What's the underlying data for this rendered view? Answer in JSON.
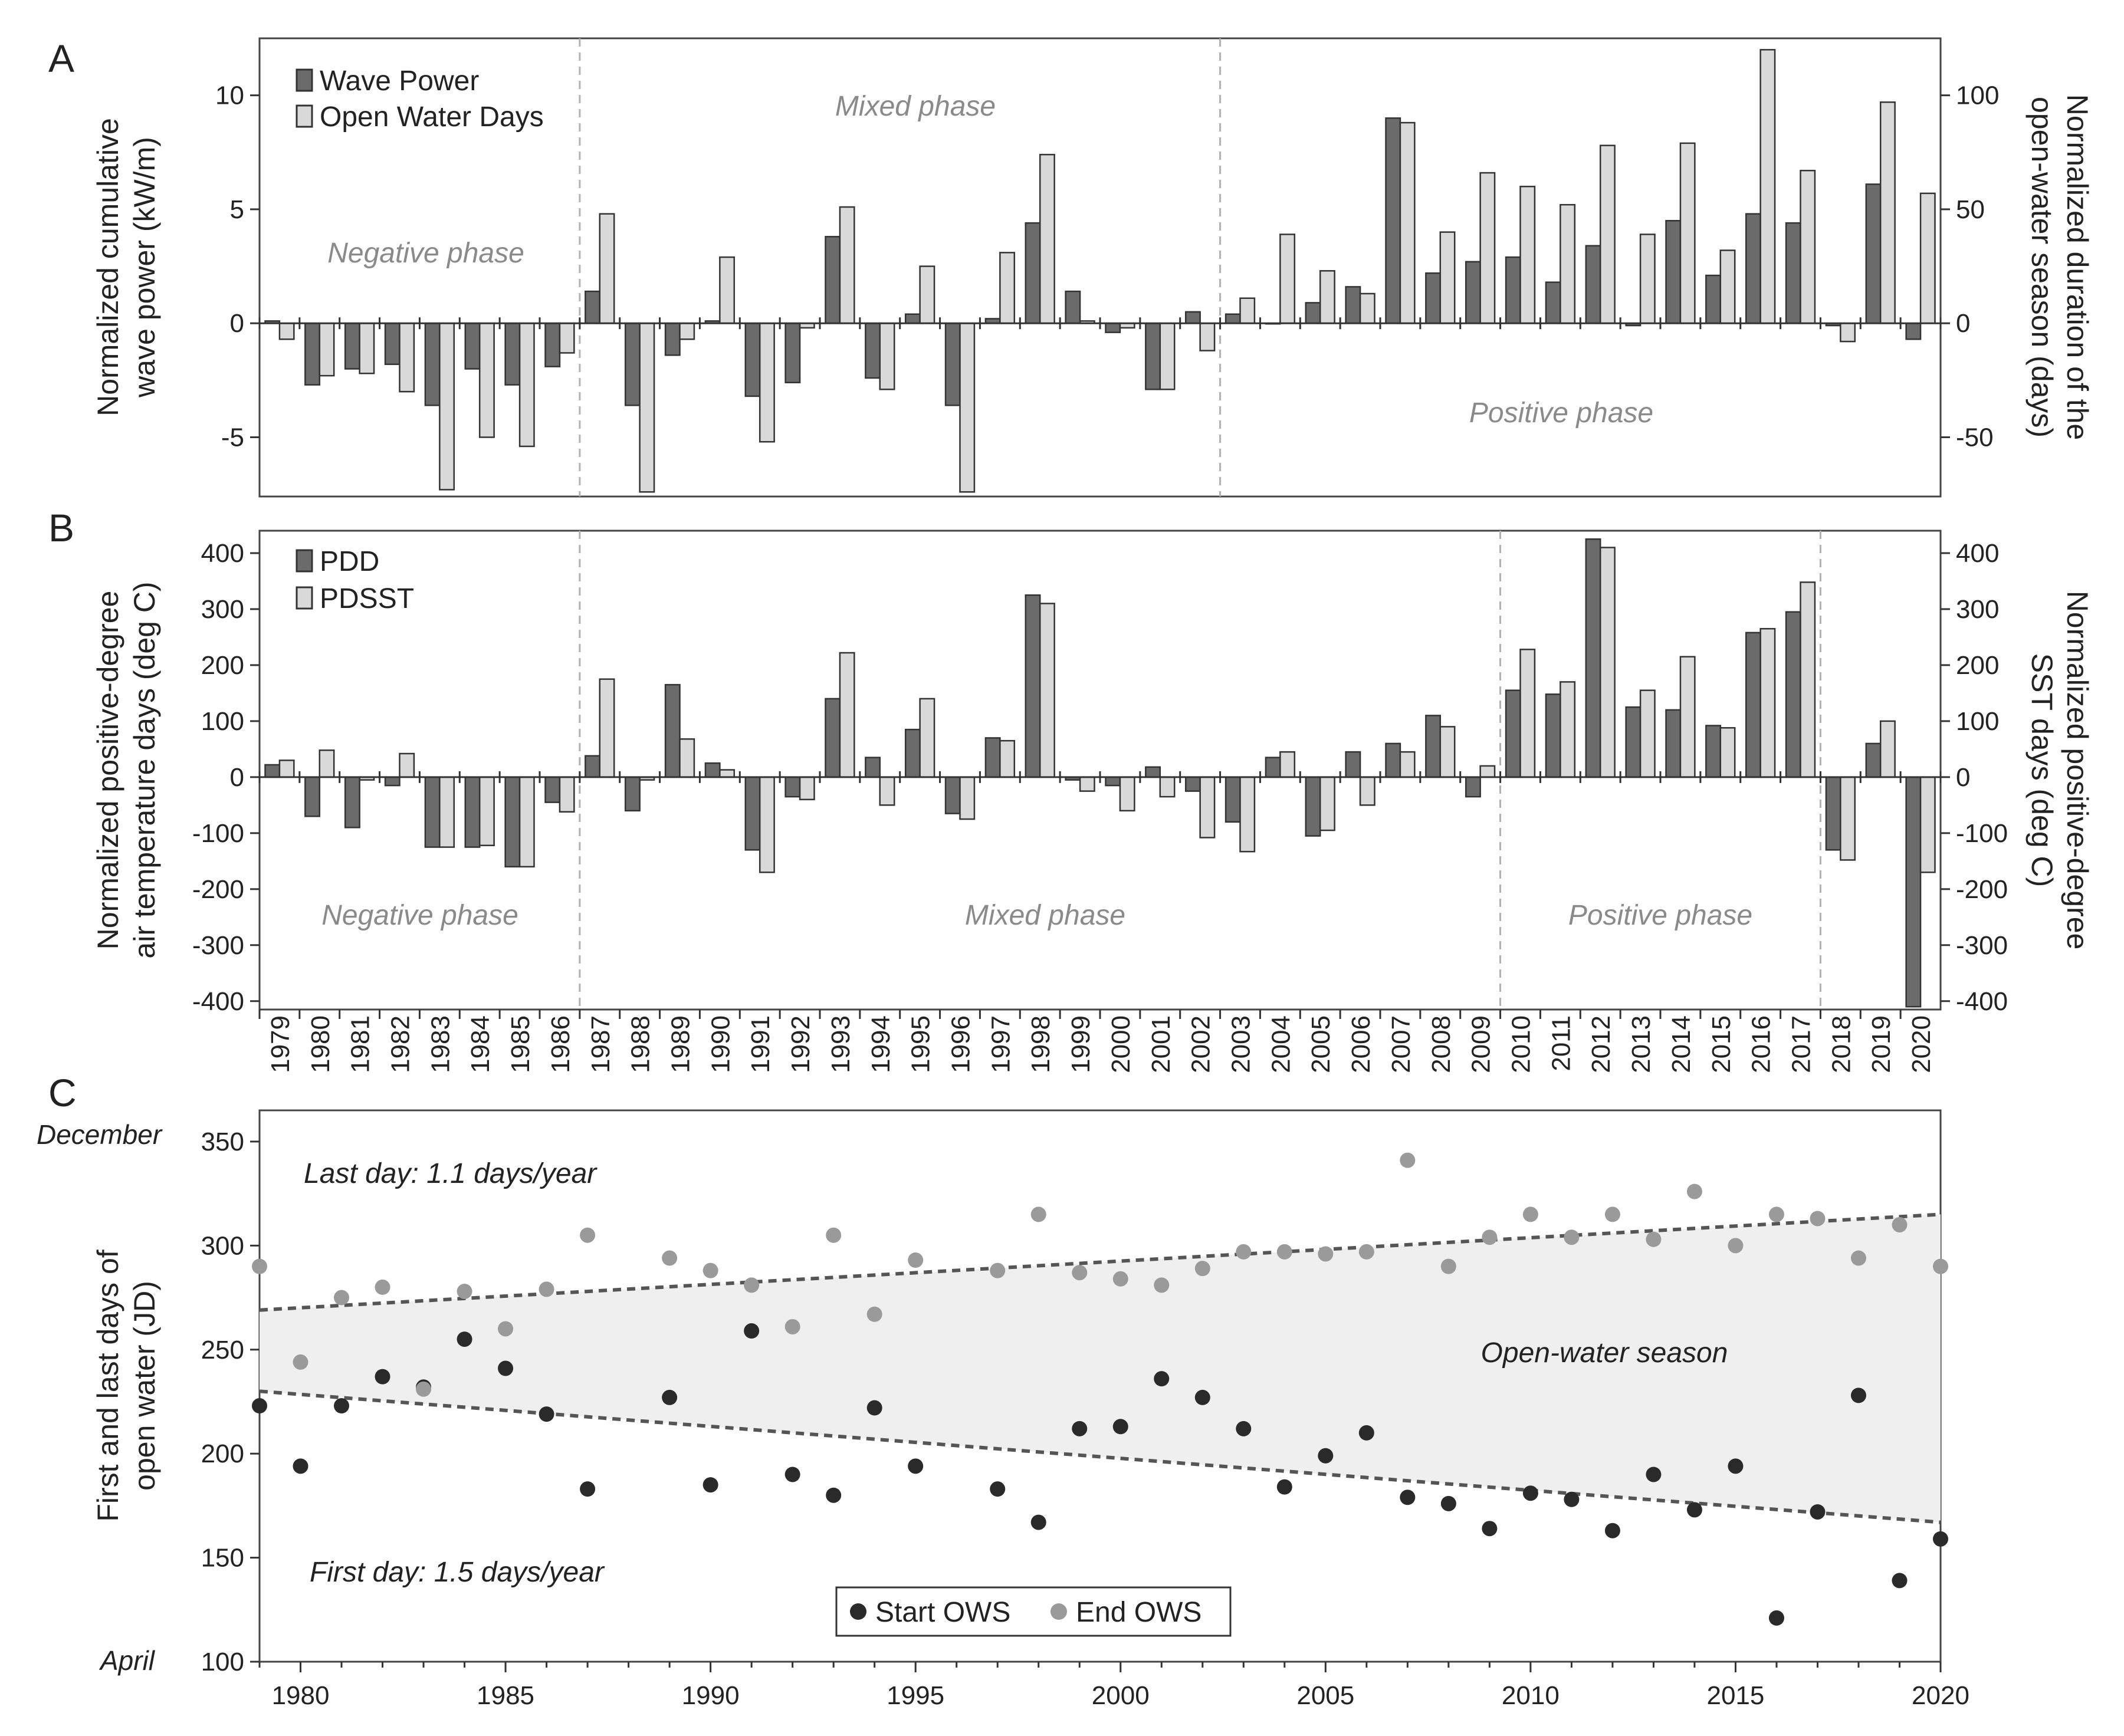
{
  "chart_data": [
    {
      "panel": "A",
      "type": "bar",
      "categories": [
        1979,
        1980,
        1981,
        1982,
        1983,
        1984,
        1985,
        1986,
        1987,
        1988,
        1989,
        1990,
        1991,
        1992,
        1993,
        1994,
        1995,
        1996,
        1997,
        1998,
        1999,
        2000,
        2001,
        2002,
        2003,
        2004,
        2005,
        2006,
        2007,
        2008,
        2009,
        2010,
        2011,
        2012,
        2013,
        2014,
        2015,
        2016,
        2017,
        2018,
        2019,
        2020
      ],
      "series": [
        {
          "name": "Wave Power",
          "axis": "left",
          "color": "#6b6b6b",
          "values": [
            0.1,
            -2.7,
            -2.0,
            -1.8,
            -3.6,
            -2.0,
            -2.7,
            -1.9,
            1.4,
            -3.6,
            -1.4,
            0.1,
            -3.2,
            -2.6,
            3.8,
            -2.4,
            0.4,
            -3.6,
            0.2,
            4.4,
            1.4,
            -0.4,
            -2.9,
            0.5,
            0.4,
            0.0,
            0.9,
            1.6,
            9.0,
            2.2,
            2.7,
            2.9,
            1.8,
            3.4,
            -0.1,
            4.5,
            2.1,
            4.8,
            4.4,
            -0.1,
            6.1,
            -0.7
          ]
        },
        {
          "name": "Open Water Days",
          "axis": "right",
          "color": "#d9d9d9",
          "values": [
            -7,
            -23,
            -22,
            -30,
            -73,
            -50,
            -54,
            -13,
            48,
            -74,
            -7,
            29,
            -52,
            -2,
            51,
            -29,
            25,
            -74,
            31,
            74,
            1,
            -2,
            -29,
            -12,
            11,
            39,
            23,
            13,
            88,
            40,
            66,
            60,
            52,
            78,
            39,
            79,
            32,
            120,
            67,
            -8,
            97,
            57
          ]
        }
      ],
      "ylabel_left": "Normalized cumulative wave power (kW/m)",
      "ylabel_right": "Normalized duration of the open-water season (days)",
      "ylim_left": [
        -7.6,
        12.5
      ],
      "ylim_right": [
        -76,
        125
      ],
      "yticks_left": [
        "-5",
        "0",
        "5",
        "10"
      ],
      "yticks_right": [
        "-50",
        "0",
        "50",
        "100"
      ],
      "phases": [
        {
          "label": "Negative phase",
          "from_year": 1979,
          "to_year": 1986
        },
        {
          "label": "Mixed phase",
          "from_year": 1987,
          "to_year": 2002
        },
        {
          "label": "Positive phase",
          "from_year": 2003,
          "to_year": 2020
        }
      ]
    },
    {
      "panel": "B",
      "type": "bar",
      "categories": [
        1979,
        1980,
        1981,
        1982,
        1983,
        1984,
        1985,
        1986,
        1987,
        1988,
        1989,
        1990,
        1991,
        1992,
        1993,
        1994,
        1995,
        1996,
        1997,
        1998,
        1999,
        2000,
        2001,
        2002,
        2003,
        2004,
        2005,
        2006,
        2007,
        2008,
        2009,
        2010,
        2011,
        2012,
        2013,
        2014,
        2015,
        2016,
        2017,
        2018,
        2019,
        2020
      ],
      "series": [
        {
          "name": "PDD",
          "axis": "left",
          "color": "#6b6b6b",
          "values": [
            22,
            -70,
            -90,
            -15,
            -125,
            -125,
            -160,
            -45,
            38,
            -60,
            165,
            25,
            -130,
            -35,
            140,
            35,
            85,
            -65,
            70,
            325,
            -5,
            -15,
            18,
            -25,
            -80,
            35,
            -105,
            45,
            60,
            110,
            -35,
            155,
            148,
            425,
            125,
            120,
            92,
            258,
            295,
            -130,
            60,
            -410
          ]
        },
        {
          "name": "PDSST",
          "axis": "right",
          "color": "#d9d9d9",
          "values": [
            30,
            48,
            -5,
            42,
            -125,
            -122,
            -160,
            -62,
            175,
            -5,
            68,
            13,
            -170,
            -40,
            222,
            -50,
            140,
            -75,
            65,
            310,
            -25,
            -60,
            -35,
            -108,
            -133,
            45,
            -95,
            -50,
            45,
            90,
            20,
            228,
            170,
            410,
            155,
            215,
            88,
            265,
            348,
            -148,
            100,
            -170
          ]
        }
      ],
      "ylabel_left": "Normalized positive-degree air temperature days (deg C)",
      "ylabel_right": "Normalized positive-degree SST days (deg C)",
      "ylim_left": [
        -415,
        440
      ],
      "ylim_right": [
        -415,
        440
      ],
      "yticks": [
        "-400",
        "-300",
        "-200",
        "-100",
        "0",
        "100",
        "200",
        "300",
        "400"
      ],
      "phases": [
        {
          "label": "Negative phase",
          "from_year": 1979,
          "to_year": 1986
        },
        {
          "label": "Mixed phase",
          "from_year": 1987,
          "to_year": 2009
        },
        {
          "label": "Positive phase",
          "from_year": 2010,
          "to_year": 2017
        }
      ],
      "xtick_labels": [
        "1979",
        "1980",
        "1981",
        "1982",
        "1983",
        "1984",
        "1985",
        "1986",
        "1987",
        "1988",
        "1989",
        "1990",
        "1991",
        "1992",
        "1993",
        "1994",
        "1995",
        "1996",
        "1997",
        "1998",
        "1999",
        "2000",
        "2001",
        "2002",
        "2003",
        "2004",
        "2005",
        "2006",
        "2007",
        "2008",
        "2009",
        "2010",
        "2011",
        "2012",
        "2013",
        "2014",
        "2015",
        "2016",
        "2017",
        "2018",
        "2019",
        "2020"
      ]
    },
    {
      "panel": "C",
      "type": "scatter",
      "x": [
        1979,
        1980,
        1981,
        1982,
        1983,
        1984,
        1985,
        1986,
        1987,
        1989,
        1990,
        1991,
        1992,
        1993,
        1994,
        1995,
        1997,
        1998,
        1999,
        2000,
        2001,
        2002,
        2003,
        2004,
        2005,
        2006,
        2007,
        2008,
        2009,
        2010,
        2011,
        2012,
        2013,
        2014,
        2015,
        2016,
        2017,
        2018,
        2019,
        2020
      ],
      "series": [
        {
          "name": "Start OWS",
          "color": "#2a2a2a",
          "values": [
            223,
            194,
            223,
            237,
            232,
            255,
            241,
            219,
            183,
            227,
            185,
            259,
            190,
            180,
            222,
            194,
            183,
            167,
            212,
            213,
            236,
            227,
            212,
            184,
            199,
            210,
            179,
            176,
            164,
            181,
            178,
            163,
            190,
            173,
            194,
            121,
            172,
            228,
            139,
            159
          ]
        },
        {
          "name": "End OWS",
          "color": "#9a9a9a",
          "values": [
            290,
            244,
            275,
            280,
            231,
            278,
            260,
            279,
            305,
            294,
            288,
            281,
            261,
            305,
            267,
            293,
            288,
            315,
            287,
            284,
            281,
            289,
            297,
            297,
            296,
            297,
            341,
            290,
            304,
            315,
            304,
            315,
            303,
            326,
            300,
            315,
            313,
            294,
            310,
            290
          ]
        }
      ],
      "trends": [
        {
          "name": "End OWS trend",
          "x": [
            1979,
            2020
          ],
          "y": [
            269,
            315
          ],
          "label": "Last day: 1.1 days/year"
        },
        {
          "name": "Start OWS trend",
          "x": [
            1979,
            2020
          ],
          "y": [
            230,
            167
          ],
          "label": "First day: 1.5 days/year"
        }
      ],
      "shaded_region": "Open-water season",
      "ylabel": "First and last days of open water (JD)",
      "ylim": [
        100,
        365
      ],
      "xlim": [
        1979,
        2020
      ],
      "yticks": [
        "100",
        "150",
        "200",
        "250",
        "300",
        "350"
      ],
      "xticks": [
        "1980",
        "1985",
        "1990",
        "1995",
        "2000",
        "2005",
        "2010",
        "2015",
        "2020"
      ],
      "month_labels": {
        "top": "December",
        "bottom": "April"
      }
    }
  ],
  "labels": {
    "panel_a": "A",
    "panel_b": "B",
    "panel_c": "C",
    "a_left_ylabel_line1": "Normalized cumulative",
    "a_left_ylabel_line2": "wave power (kW/m)",
    "a_right_ylabel_line1": "Normalized duration of the",
    "a_right_ylabel_line2": "open-water season (days)",
    "b_left_ylabel_line1": "Normalized positive-degree",
    "b_left_ylabel_line2": "air temperature days (deg C)",
    "b_right_ylabel_line1": "Normalized positive-degree",
    "b_right_ylabel_line2": "SST days (deg C)",
    "c_ylabel_line1": "First and last days of",
    "c_ylabel_line2": "open water (JD)",
    "legend_a_1": "Wave Power",
    "legend_a_2": "Open Water Days",
    "legend_b_1": "PDD",
    "legend_b_2": "PDSST",
    "legend_c_1": "Start OWS",
    "legend_c_2": "End OWS",
    "a_phase_neg": "Negative phase",
    "a_phase_mixed": "Mixed phase",
    "a_phase_pos": "Positive phase",
    "b_phase_neg": "Negative phase",
    "b_phase_mixed": "Mixed phase",
    "b_phase_pos": "Positive phase",
    "c_last_day": "Last day: 1.1 days/year",
    "c_first_day": "First day: 1.5 days/year",
    "c_season": "Open-water season",
    "month_december": "December",
    "month_april": "April"
  }
}
